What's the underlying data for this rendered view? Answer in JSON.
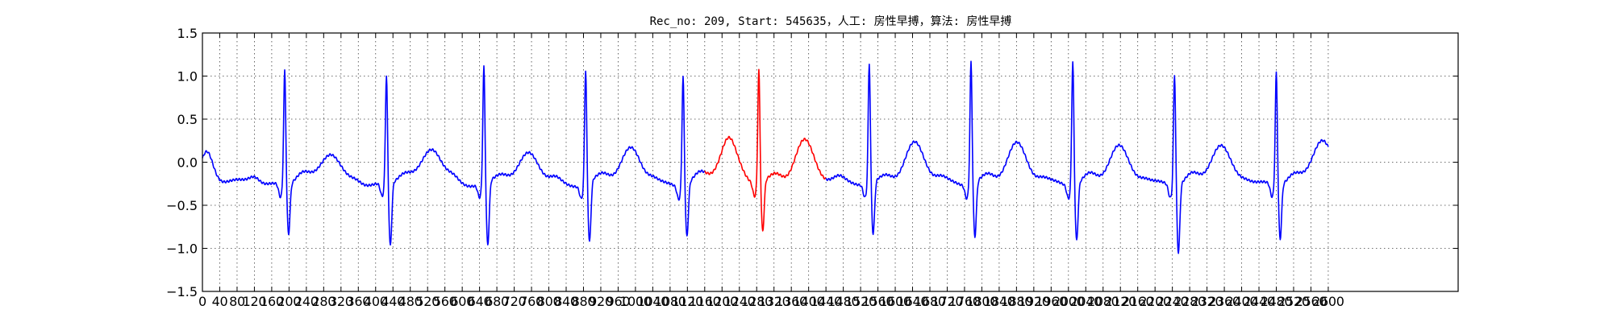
{
  "chart_data": {
    "type": "line",
    "title": "Rec_no: 209, Start: 545635，人工: 房性早搏，算法: 房性早搏",
    "xlabel": "",
    "ylabel": "",
    "xlim": [
      0,
      2900
    ],
    "ylim": [
      -1.5,
      1.5
    ],
    "yticks": [
      -1.5,
      -1.0,
      -0.5,
      0.0,
      0.5,
      1.0,
      1.5
    ],
    "ytick_labels": [
      "−1.5",
      "−1.0",
      "−0.5",
      "0.0",
      "0.5",
      "1.0",
      "1.5"
    ],
    "xticks": [
      0,
      40,
      80,
      120,
      160,
      200,
      240,
      280,
      320,
      360,
      400,
      440,
      480,
      520,
      560,
      600,
      640,
      680,
      720,
      760,
      800,
      840,
      880,
      920,
      960,
      1000,
      1040,
      1080,
      1120,
      1160,
      1200,
      1240,
      1280,
      1320,
      1360,
      1400,
      1440,
      1480,
      1520,
      1560,
      1600,
      1640,
      1680,
      1720,
      1760,
      1800,
      1840,
      1880,
      1920,
      1960,
      2000,
      2040,
      2080,
      2120,
      2160,
      2200,
      2240,
      2280,
      2320,
      2360,
      2400,
      2440,
      2480,
      2520,
      2560,
      2600
    ],
    "grid": true,
    "data_end": 2600,
    "highlight_range": [
      1160,
      1440
    ],
    "colors": {
      "normal": "#0000ff",
      "highlight": "#ff0000"
    },
    "beats": [
      {
        "r": 190,
        "r_amp": 1.1,
        "s_amp": -0.82,
        "p_amp": 0.1,
        "t_amp": 0.0
      },
      {
        "r": 425,
        "r_amp": 1.03,
        "s_amp": -0.97,
        "p_amp": 0.05,
        "t_amp": 0.06
      },
      {
        "r": 650,
        "r_amp": 1.13,
        "s_amp": -0.98,
        "p_amp": 0.06,
        "t_amp": 0.0
      },
      {
        "r": 885,
        "r_amp": 1.1,
        "s_amp": -0.94,
        "p_amp": 0.06,
        "t_amp": 0.05
      },
      {
        "r": 1110,
        "r_amp": 1.05,
        "s_amp": -0.85,
        "p_amp": 0.06,
        "t_amp": 0.1
      },
      {
        "r": 1285,
        "r_amp": 1.09,
        "s_amp": -0.82,
        "p_amp": 0.08,
        "t_amp": 0.17
      },
      {
        "r": 1540,
        "r_amp": 1.17,
        "s_amp": -0.85,
        "p_amp": 0.05,
        "t_amp": 0.13
      },
      {
        "r": 1775,
        "r_amp": 1.2,
        "s_amp": -0.87,
        "p_amp": 0.05,
        "t_amp": 0.12
      },
      {
        "r": 2010,
        "r_amp": 1.22,
        "s_amp": -0.9,
        "p_amp": 0.05,
        "t_amp": 0.09
      },
      {
        "r": 2245,
        "r_amp": 1.07,
        "s_amp": -1.03,
        "p_amp": 0.05,
        "t_amp": 0.1
      },
      {
        "r": 2480,
        "r_amp": 1.08,
        "s_amp": -0.87,
        "p_amp": 0.04,
        "t_amp": 0.17
      }
    ]
  }
}
